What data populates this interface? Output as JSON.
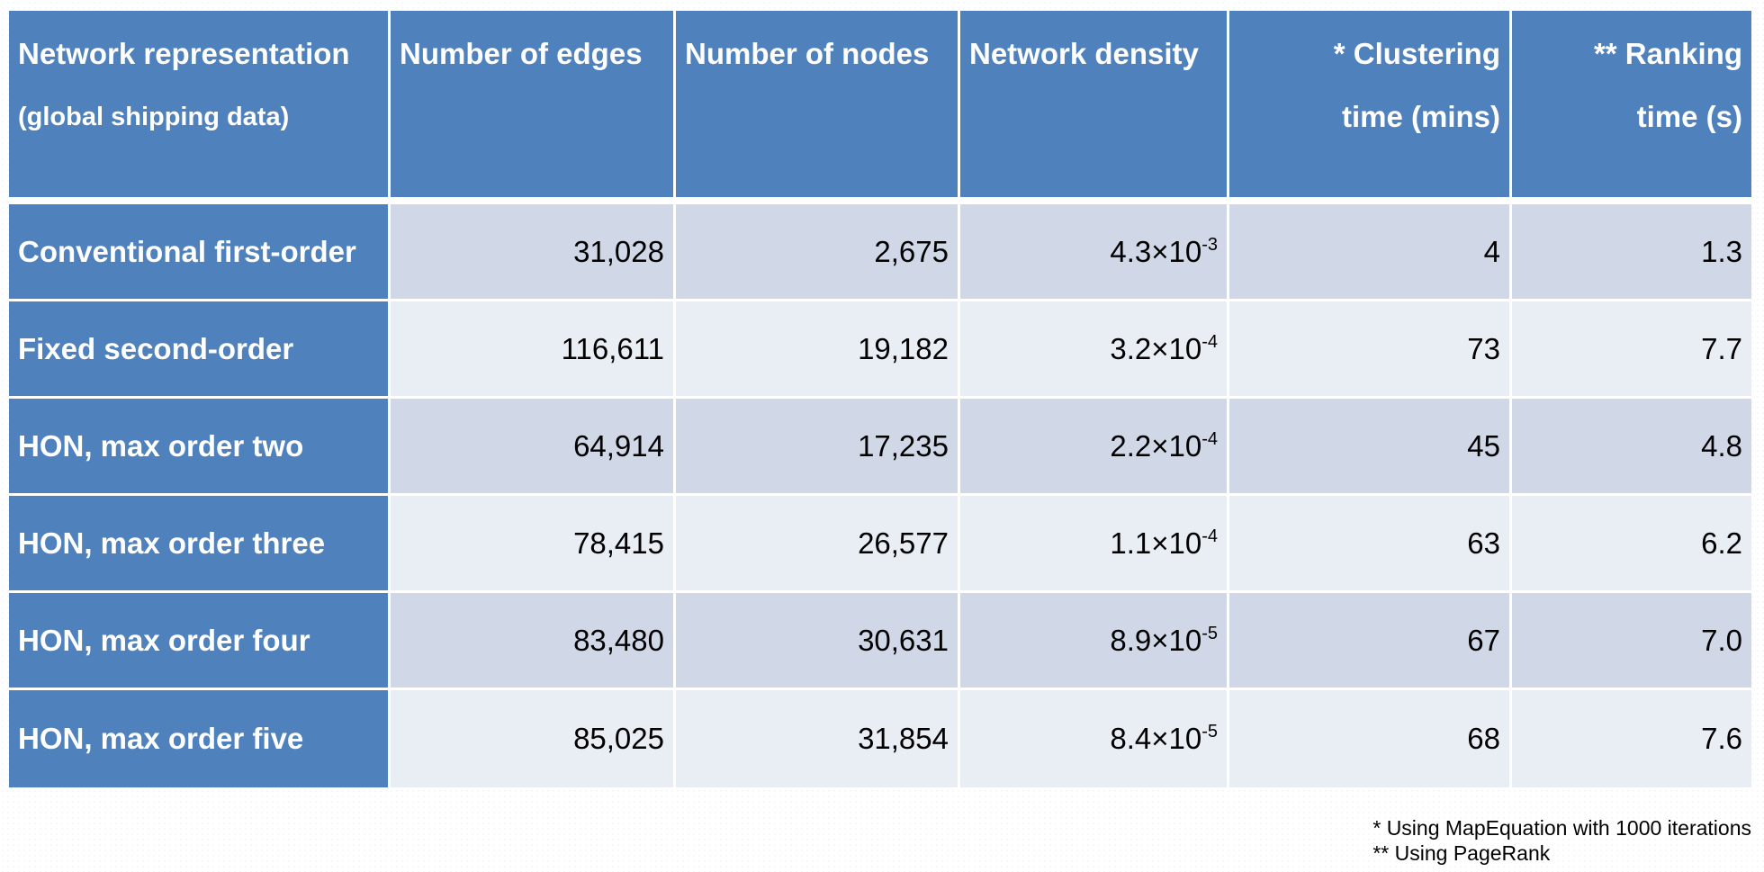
{
  "chart_data": {
    "type": "table",
    "columns": [
      {
        "line1": "Network representation",
        "line2": "(global shipping data)"
      },
      {
        "line1": "Number of edges",
        "line2": ""
      },
      {
        "line1": "Number of nodes",
        "line2": ""
      },
      {
        "line1": "Network density",
        "line2": ""
      },
      {
        "line1": "* Clustering",
        "line2": "time (mins)"
      },
      {
        "line1": "** Ranking",
        "line2": "time (s)"
      }
    ],
    "rows": [
      {
        "label": "Conventional first-order",
        "edges": "31,028",
        "nodes": "2,675",
        "density_mantissa": "4.3×10",
        "density_exponent": "-3",
        "clustering": "4",
        "ranking": "1.3"
      },
      {
        "label": "Fixed second-order",
        "edges": "116,611",
        "nodes": "19,182",
        "density_mantissa": "3.2×10",
        "density_exponent": "-4",
        "clustering": "73",
        "ranking": "7.7"
      },
      {
        "label": "HON, max order two",
        "edges": "64,914",
        "nodes": "17,235",
        "density_mantissa": "2.2×10",
        "density_exponent": "-4",
        "clustering": "45",
        "ranking": "4.8"
      },
      {
        "label": "HON, max order three",
        "edges": "78,415",
        "nodes": "26,577",
        "density_mantissa": "1.1×10",
        "density_exponent": "-4",
        "clustering": "63",
        "ranking": "6.2"
      },
      {
        "label": "HON, max order four",
        "edges": "83,480",
        "nodes": "30,631",
        "density_mantissa": "8.9×10",
        "density_exponent": "-5",
        "clustering": "67",
        "ranking": "7.0"
      },
      {
        "label": "HON, max order five",
        "edges": "85,025",
        "nodes": "31,854",
        "density_mantissa": "8.4×10",
        "density_exponent": "-5",
        "clustering": "68",
        "ranking": "7.6"
      }
    ],
    "footnotes": [
      "* Using MapEquation with 1000 iterations",
      "** Using PageRank"
    ],
    "colors": {
      "header_bg": "#4f81bd",
      "row_odd_bg": "#d0d8e8",
      "row_even_bg": "#e9edf4"
    }
  }
}
